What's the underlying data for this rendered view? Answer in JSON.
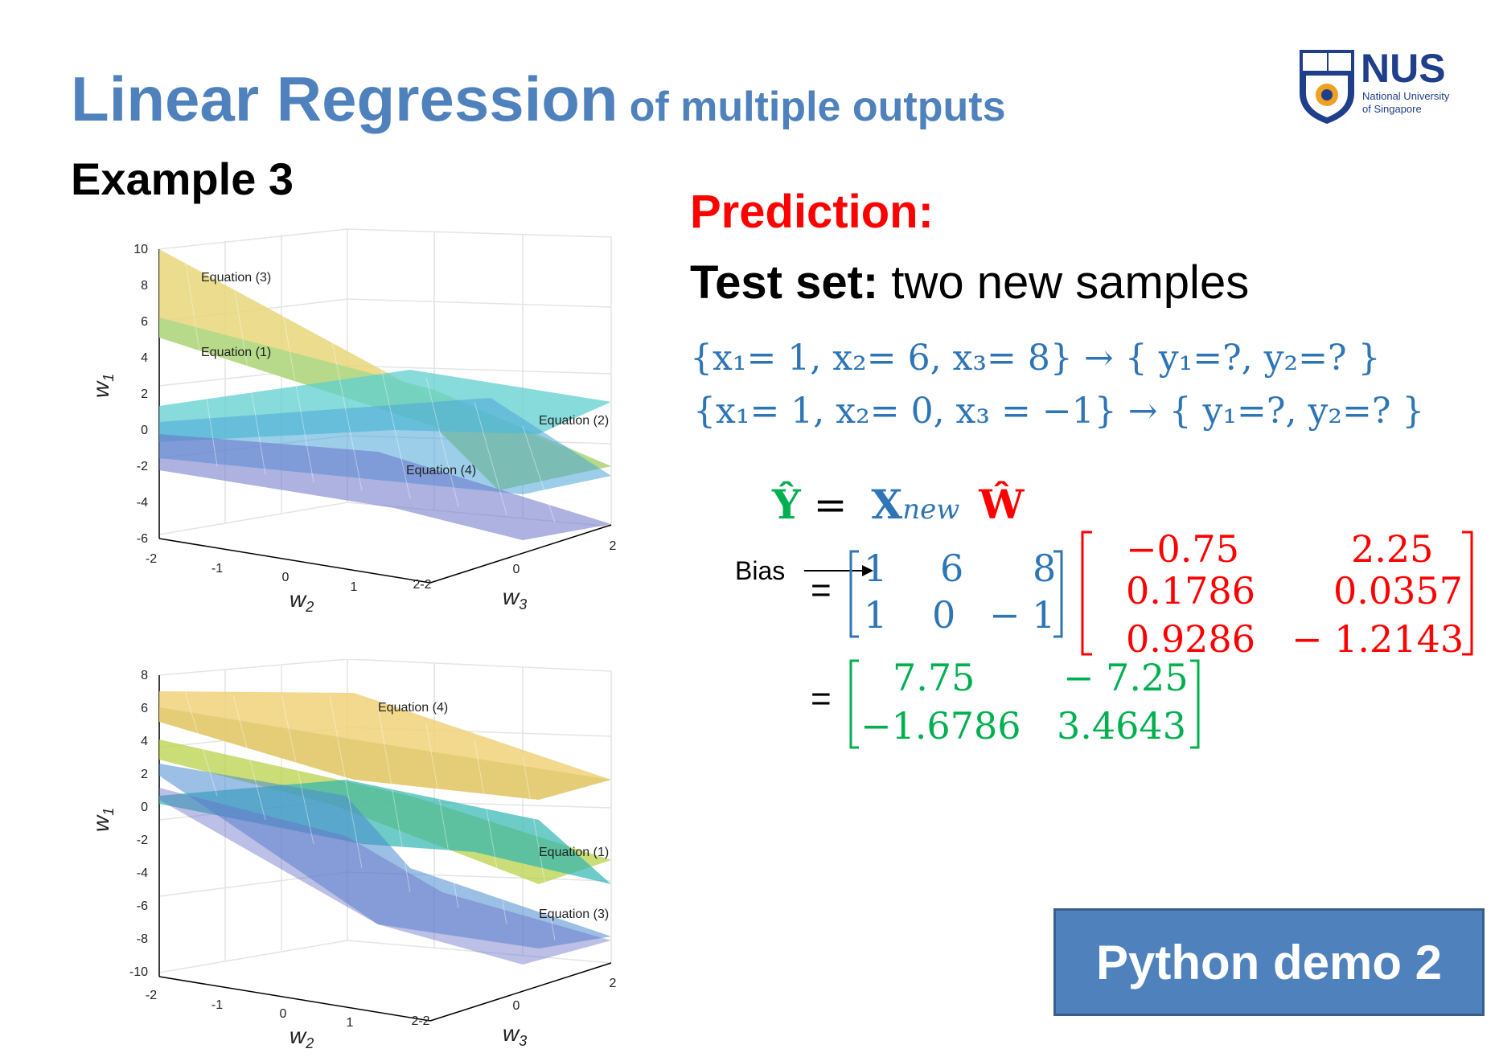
{
  "title": {
    "main": "Linear Regression",
    "sub": "of multiple outputs"
  },
  "example": "Example 3",
  "logo": {
    "name": "NUS",
    "line1": "National University",
    "line2": "of Singapore"
  },
  "prediction": "Prediction:",
  "test_set": {
    "label": "Test set:",
    "text": "two new samples"
  },
  "samples": [
    {
      "lhs": "{x₁= 1, x₂= 6,    x₃= 8}",
      "arrow": "→",
      "rhs": "{ y₁=?, y₂=? }"
    },
    {
      "lhs": "{x₁= 1, x₂= 0, x₃ = −1}",
      "arrow": "→",
      "rhs": "{ y₁=?, y₂=? }"
    }
  ],
  "formula": {
    "y_hat": "Ŷ",
    "eq": "=",
    "x_new": "X",
    "x_sub": "new",
    "w_hat": "Ŵ"
  },
  "bias_label": "Bias",
  "x_matrix": [
    [
      "1",
      "6",
      "8"
    ],
    [
      "1",
      "0",
      "− 1"
    ]
  ],
  "w_matrix": [
    [
      "−0.75",
      "2.25"
    ],
    [
      "0.1786",
      "0.0357"
    ],
    [
      "0.9286",
      "− 1.2143"
    ]
  ],
  "result_matrix": [
    [
      "7.75",
      "− 7.25"
    ],
    [
      "−1.6786",
      "3.4643"
    ]
  ],
  "demo_button": "Python demo 2",
  "plots": [
    {
      "y_ticks": [
        "10",
        "8",
        "6",
        "4",
        "2",
        "0",
        "-2",
        "-4",
        "-6"
      ],
      "y_label": "w",
      "y_label_sub": "1",
      "x_ticks": [
        "-2",
        "-1",
        "0",
        "1",
        "2-2"
      ],
      "x_label": "w",
      "x_label_sub": "2",
      "z_ticks": [
        "0",
        "2"
      ],
      "z_label": "w",
      "z_label_sub": "3",
      "annotations": [
        "Equation (3)",
        "Equation (1)",
        "Equation (2)",
        "Equation (4)"
      ]
    },
    {
      "y_ticks": [
        "8",
        "6",
        "4",
        "2",
        "0",
        "-2",
        "-4",
        "-6",
        "-8",
        "-10"
      ],
      "y_label": "w",
      "y_label_sub": "1",
      "x_ticks": [
        "-2",
        "-1",
        "0",
        "1",
        "2-2"
      ],
      "x_label": "w",
      "x_label_sub": "2",
      "z_ticks": [
        "0",
        "2"
      ],
      "z_label": "w",
      "z_label_sub": "3",
      "annotations": [
        "Equation (4)",
        "Equation (1)",
        "Equation (3)"
      ]
    }
  ],
  "colors": {
    "title": "#4f81bd",
    "accent_red": "#ff0000",
    "eq_blue": "#2e75b6",
    "result_green": "#00b050",
    "button": "#4f81bd"
  }
}
